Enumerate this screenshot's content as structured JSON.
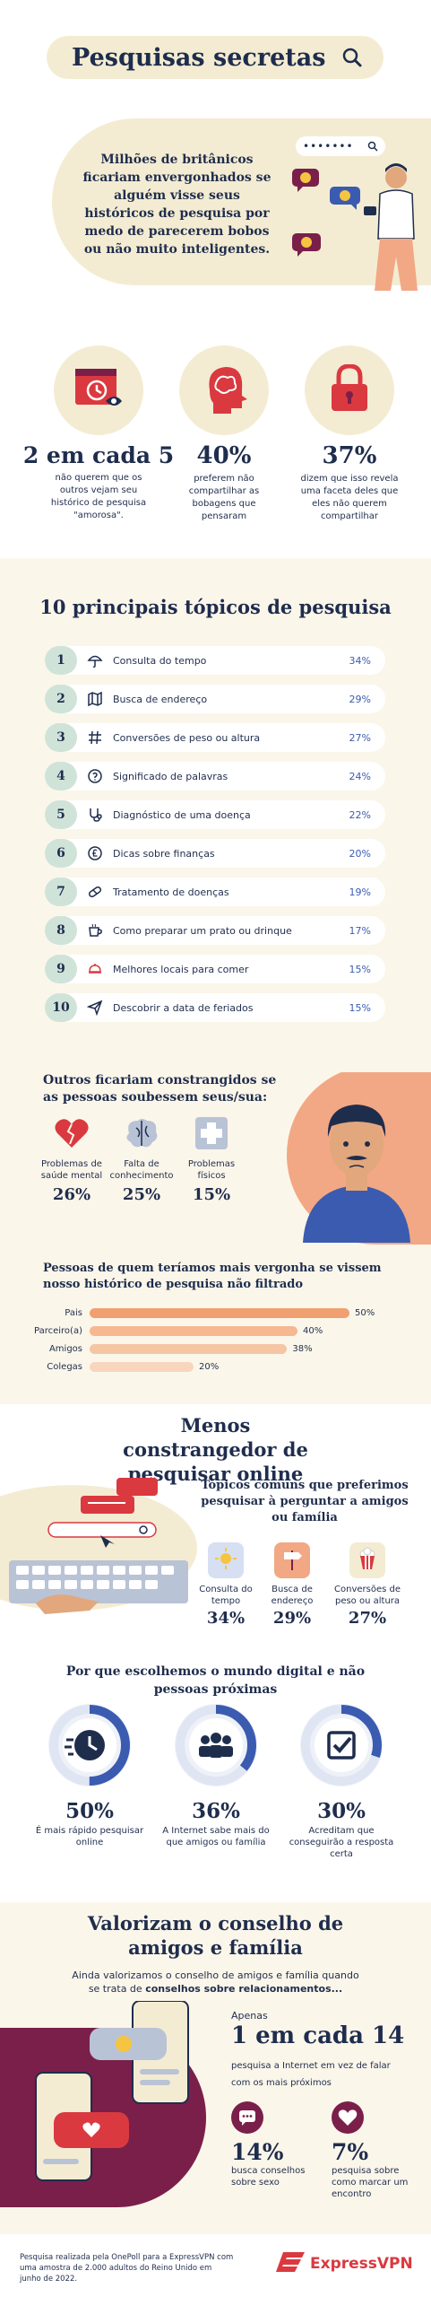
{
  "header": {
    "title": "Pesquisas secretas",
    "intro": "Milhões de britânicos ficariam envergonhados se alguém visse seus históricos de pesquisa por medo de parecerem bobos ou não muito inteligentes.",
    "search_dots": "•••••••"
  },
  "stats": [
    {
      "value": "2 em cada 5",
      "label": "não querem que os outros vejam seu histórico de pesquisa \"amorosa\"."
    },
    {
      "value": "40%",
      "label": "preferem não compartilhar as bobagens que pensaram"
    },
    {
      "value": "37%",
      "label": "dizem que isso revela uma faceta deles que eles não querem compartilhar"
    }
  ],
  "top10": {
    "title": "10 principais tópicos de pesquisa",
    "rows": [
      {
        "num": "1",
        "label": "Consulta do tempo",
        "pct": "34%",
        "icon": "umbrella-icon"
      },
      {
        "num": "2",
        "label": "Busca de endereço",
        "pct": "29%",
        "icon": "map-icon"
      },
      {
        "num": "3",
        "label": "Conversões de peso ou altura",
        "pct": "27%",
        "icon": "hash-icon"
      },
      {
        "num": "4",
        "label": "Significado de palavras",
        "pct": "24%",
        "icon": "question-icon"
      },
      {
        "num": "5",
        "label": "Diagnóstico de uma doença",
        "pct": "22%",
        "icon": "stethoscope-icon"
      },
      {
        "num": "6",
        "label": "Dicas sobre finanças",
        "pct": "20%",
        "icon": "pound-icon"
      },
      {
        "num": "7",
        "label": "Tratamento de doenças",
        "pct": "19%",
        "icon": "pill-icon"
      },
      {
        "num": "8",
        "label": "Como preparar um prato ou drinque",
        "pct": "17%",
        "icon": "cup-icon"
      },
      {
        "num": "9",
        "label": "Melhores locais para comer",
        "pct": "15%",
        "icon": "cloche-icon"
      },
      {
        "num": "10",
        "label": "Descobrir a data de feriados",
        "pct": "15%",
        "icon": "plane-icon"
      }
    ]
  },
  "embarrassed": {
    "title": "Outros ficariam constrangidos se as pessoas soubessem seus/sua:",
    "items": [
      {
        "label": "Problemas de saúde mental",
        "value": "26%",
        "icon": "broken-heart-icon"
      },
      {
        "label": "Falta de conhecimento",
        "value": "25%",
        "icon": "brain-icon"
      },
      {
        "label": "Problemas físicos",
        "value": "15%",
        "icon": "medical-cross-icon"
      }
    ],
    "chart_title": "Pessoas de quem teríamos mais vergonha se vissem nosso histórico de pesquisa não filtrado"
  },
  "chart_data": {
    "type": "bar",
    "orientation": "horizontal",
    "categories": [
      "Pais",
      "Parceiro(a)",
      "Amigos",
      "Colegas"
    ],
    "values": [
      50,
      40,
      38,
      20
    ],
    "value_labels": [
      "50%",
      "40%",
      "38%",
      "20%"
    ],
    "title": "Pessoas de quem teríamos mais vergonha se vissem nosso histórico de pesquisa não filtrado",
    "xlim": [
      0,
      50
    ],
    "colors": [
      "#f0a070",
      "#f5b890",
      "#f5c6a4",
      "#f8d6bd"
    ]
  },
  "online": {
    "title": "Menos constrangedor de pesquisar online",
    "subtitle": "Tópicos comuns que preferimos pesquisar à perguntar a amigos ou família",
    "items": [
      {
        "label": "Consulta do tempo",
        "value": "34%",
        "icon": "sun-icon",
        "color": "#d7dff2"
      },
      {
        "label": "Busca de endereço",
        "value": "29%",
        "icon": "signpost-icon",
        "color": "#f2a884"
      },
      {
        "label": "Conversões de peso ou altura",
        "value": "27%",
        "icon": "popcorn-icon",
        "color": "#f4ecd2"
      }
    ],
    "why_title": "Por que escolhemos o mundo digital e não pessoas próximas",
    "donuts": [
      {
        "value": "50%",
        "fraction": 0.5,
        "label": "É mais rápido pesquisar online",
        "icon": "clock-icon"
      },
      {
        "value": "36%",
        "fraction": 0.36,
        "label": "A Internet sabe mais do que amigos ou família",
        "icon": "people-icon"
      },
      {
        "value": "30%",
        "fraction": 0.3,
        "label": "Acreditam que conseguirão a resposta certa",
        "icon": "checkbox-icon"
      }
    ]
  },
  "friends": {
    "title": "Valorizam o conselho de amigos e família",
    "subtitle_plain": "Ainda valorizamos o conselho de amigos e família quando se trata de ",
    "subtitle_bold": "conselhos sobre relacionamentos...",
    "only": "Apenas",
    "big_value": "1 em cada 14",
    "big_label": "pesquisa a Internet em vez de falar com os mais próximos",
    "items": [
      {
        "value": "14%",
        "label": "busca conselhos sobre sexo",
        "icon": "chat-icon"
      },
      {
        "value": "7%",
        "label": "pesquisa sobre como marcar um encontro",
        "icon": "heart-icon"
      }
    ]
  },
  "footer": {
    "note": "Pesquisa realizada pela OnePoll para a ExpressVPN com uma amostra de 2.000 adultos do Reino Unido em junho de 2022.",
    "brand": "ExpressVPN"
  },
  "colors": {
    "navy": "#1f2d4d",
    "cream": "#f4ecd2",
    "peach": "#f2a884",
    "mint": "#cfe3d9",
    "blue": "#3a5bb0",
    "plum": "#7a1f4a",
    "red": "#da3940"
  }
}
